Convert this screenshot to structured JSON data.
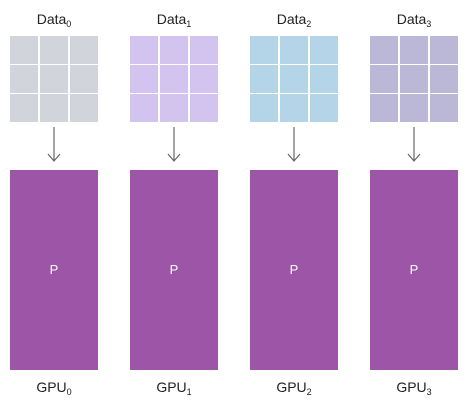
{
  "columns": [
    {
      "data_label": "Data",
      "data_sub": "0",
      "grid_color": "#d1d4da",
      "block_label": "P",
      "gpu_label": "GPU",
      "gpu_sub": "0"
    },
    {
      "data_label": "Data",
      "data_sub": "1",
      "grid_color": "#d3c3ef",
      "block_label": "P",
      "gpu_label": "GPU",
      "gpu_sub": "1"
    },
    {
      "data_label": "Data",
      "data_sub": "2",
      "grid_color": "#b4d4e7",
      "block_label": "P",
      "gpu_label": "GPU",
      "gpu_sub": "2"
    },
    {
      "data_label": "Data",
      "data_sub": "3",
      "grid_color": "#bbb7d6",
      "block_label": "P",
      "gpu_label": "GPU",
      "gpu_sub": "3"
    }
  ],
  "colors": {
    "gpu_block": "#9d56a7",
    "arrow": "#666666"
  }
}
